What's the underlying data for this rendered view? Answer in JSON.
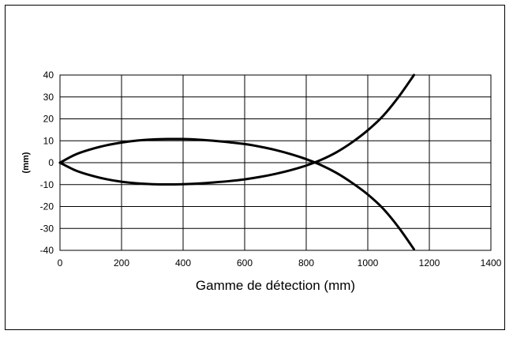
{
  "chart_data": {
    "type": "line",
    "title": "",
    "xlabel": "Gamme de détection (mm)",
    "ylabel": "(mm)",
    "xlim": [
      0,
      1400
    ],
    "ylim": [
      -40,
      40
    ],
    "x_ticks": [
      0,
      200,
      400,
      600,
      800,
      1000,
      1200,
      1400
    ],
    "y_ticks": [
      40,
      30,
      20,
      10,
      0,
      -10,
      -20,
      -30,
      -40
    ],
    "grid": true,
    "legend": "none",
    "line_color": "#000000",
    "series": [
      {
        "x": [
          0,
          50,
          100,
          150,
          200,
          250,
          300,
          350,
          400,
          450,
          500,
          550,
          600,
          650,
          700,
          750,
          800,
          850,
          900,
          950,
          1000,
          1050,
          1100,
          1150
        ],
        "y": [
          0,
          3.7,
          6.1,
          7.9,
          9.2,
          10.1,
          10.6,
          10.8,
          10.8,
          10.5,
          10.0,
          9.3,
          8.5,
          7.3,
          5.8,
          3.9,
          1.6,
          -1.2,
          -4.8,
          -9.3,
          -14.5,
          -21.0,
          -29.5,
          -39.5
        ]
      },
      {
        "x": [
          0,
          50,
          100,
          150,
          200,
          250,
          300,
          350,
          400,
          450,
          500,
          550,
          600,
          650,
          700,
          750,
          800,
          850,
          900,
          950,
          1000,
          1050,
          1100,
          1150
        ],
        "y": [
          0,
          -3.5,
          -5.8,
          -7.5,
          -8.7,
          -9.4,
          -9.8,
          -9.9,
          -9.8,
          -9.5,
          -9.0,
          -8.4,
          -7.6,
          -6.5,
          -5.1,
          -3.4,
          -1.3,
          1.4,
          4.9,
          9.4,
          14.8,
          21.4,
          30.0,
          40.0
        ]
      }
    ]
  }
}
